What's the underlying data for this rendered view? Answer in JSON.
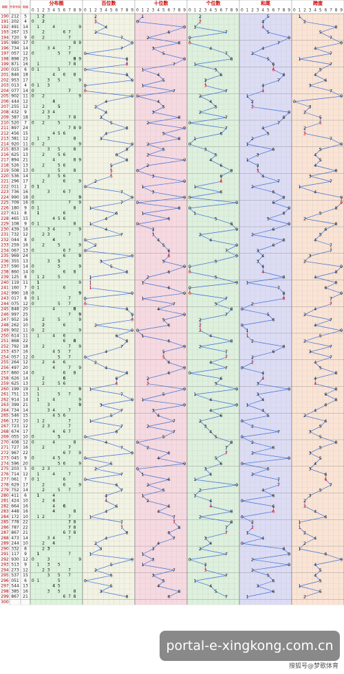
{
  "header": {
    "period": "期数",
    "number": "开奖号码",
    "sum": "和值",
    "zones": [
      "分布图",
      "百位数",
      "十位数",
      "个位数",
      "和尾",
      "跨度"
    ],
    "digits": [
      0,
      1,
      2,
      3,
      4,
      5,
      6,
      7,
      8,
      9
    ]
  },
  "rows": [
    [
      190,
      "212",
      2,
      1,
      2,
      5,
      5,
      1
    ],
    [
      191,
      "202",
      2,
      0,
      2,
      4,
      4,
      2
    ],
    [
      192,
      "491",
      4,
      9,
      1,
      14,
      4,
      8
    ],
    [
      193,
      "267",
      2,
      6,
      7,
      15,
      5,
      5
    ],
    [
      194,
      "720",
      7,
      2,
      0,
      9,
      9,
      7
    ],
    [
      195,
      "980",
      9,
      8,
      0,
      17,
      7,
      9
    ],
    [
      196,
      "734",
      7,
      3,
      4,
      14,
      4,
      4
    ],
    [
      197,
      "057",
      0,
      5,
      7,
      12,
      2,
      7
    ],
    [
      198,
      "898",
      8,
      9,
      8,
      25,
      5,
      1
    ],
    [
      199,
      "871",
      8,
      7,
      1,
      16,
      6,
      7
    ],
    [
      200,
      "015",
      0,
      1,
      5,
      6,
      6,
      5
    ],
    [
      201,
      "846",
      8,
      4,
      6,
      18,
      8,
      4
    ],
    [
      202,
      "953",
      9,
      5,
      3,
      17,
      7,
      6
    ],
    [
      203,
      "013",
      0,
      1,
      3,
      4,
      4,
      3
    ],
    [
      204,
      "077",
      0,
      7,
      7,
      14,
      4,
      7
    ],
    [
      205,
      "902",
      9,
      0,
      2,
      11,
      1,
      9
    ],
    [
      206,
      "444",
      4,
      4,
      4,
      12,
      2,
      0
    ],
    [
      207,
      "255",
      2,
      5,
      5,
      12,
      2,
      3
    ],
    [
      208,
      "432",
      4,
      3,
      2,
      9,
      9,
      2
    ],
    [
      209,
      "387",
      3,
      8,
      7,
      18,
      8,
      5
    ],
    [
      210,
      "520",
      5,
      2,
      0,
      7,
      7,
      5
    ],
    [
      211,
      "897",
      8,
      9,
      7,
      24,
      4,
      2
    ],
    [
      212,
      "456",
      4,
      5,
      6,
      15,
      5,
      2
    ],
    [
      213,
      "381",
      3,
      8,
      1,
      12,
      2,
      7
    ],
    [
      214,
      "920",
      9,
      2,
      0,
      11,
      1,
      9
    ],
    [
      215,
      "853",
      8,
      5,
      3,
      16,
      6,
      5
    ],
    [
      216,
      "625",
      6,
      2,
      5,
      13,
      3,
      4
    ],
    [
      217,
      "894",
      8,
      9,
      4,
      21,
      1,
      5
    ],
    [
      218,
      "526",
      5,
      2,
      6,
      13,
      3,
      4
    ],
    [
      219,
      "508",
      5,
      0,
      8,
      13,
      3,
      8
    ],
    [
      220,
      "536",
      5,
      3,
      6,
      14,
      4,
      3
    ],
    [
      221,
      "296",
      2,
      9,
      6,
      17,
      7,
      7
    ],
    [
      222,
      "011",
      0,
      1,
      1,
      2,
      2,
      1
    ],
    [
      223,
      "736",
      7,
      3,
      6,
      16,
      6,
      4
    ],
    [
      224,
      "990",
      9,
      9,
      0,
      18,
      8,
      9
    ],
    [
      225,
      "709",
      7,
      0,
      9,
      16,
      6,
      9
    ],
    [
      226,
      "180",
      1,
      8,
      0,
      9,
      9,
      8
    ],
    [
      227,
      "611",
      6,
      1,
      1,
      8,
      8,
      5
    ],
    [
      228,
      "465",
      4,
      6,
      5,
      15,
      5,
      2
    ],
    [
      229,
      "108",
      1,
      0,
      8,
      9,
      9,
      8
    ],
    [
      230,
      "439",
      4,
      3,
      9,
      16,
      6,
      6
    ],
    [
      231,
      "732",
      7,
      3,
      2,
      12,
      2,
      5
    ],
    [
      232,
      "044",
      0,
      4,
      4,
      8,
      8,
      4
    ],
    [
      233,
      "259",
      2,
      5,
      9,
      16,
      6,
      7
    ],
    [
      234,
      "067",
      0,
      6,
      7,
      13,
      3,
      7
    ],
    [
      235,
      "969",
      9,
      6,
      9,
      24,
      4,
      3
    ],
    [
      236,
      "355",
      3,
      5,
      5,
      13,
      3,
      2
    ],
    [
      237,
      "590",
      5,
      9,
      0,
      14,
      4,
      9
    ],
    [
      238,
      "860",
      8,
      6,
      0,
      14,
      4,
      8
    ],
    [
      239,
      "125",
      1,
      2,
      5,
      8,
      8,
      4
    ],
    [
      240,
      "119",
      1,
      1,
      9,
      11,
      1,
      8
    ],
    [
      241,
      "160",
      1,
      6,
      0,
      7,
      7,
      6
    ],
    [
      242,
      "990",
      9,
      9,
      0,
      18,
      8,
      9
    ],
    [
      243,
      "017",
      0,
      1,
      7,
      8,
      8,
      7
    ],
    [
      244,
      "075",
      0,
      7,
      5,
      12,
      2,
      7
    ],
    [
      245,
      "848",
      8,
      4,
      8,
      20,
      0,
      4
    ],
    [
      246,
      "997",
      9,
      9,
      7,
      25,
      5,
      2
    ],
    [
      247,
      "952",
      9,
      5,
      2,
      16,
      6,
      7
    ],
    [
      248,
      "262",
      2,
      6,
      2,
      10,
      0,
      4
    ],
    [
      249,
      "902",
      9,
      0,
      2,
      11,
      1,
      9
    ],
    [
      250,
      "614",
      6,
      1,
      4,
      11,
      1,
      5
    ],
    [
      251,
      "868",
      8,
      6,
      8,
      22,
      2,
      2
    ],
    [
      252,
      "792",
      7,
      9,
      2,
      18,
      8,
      7
    ],
    [
      253,
      "457",
      4,
      5,
      7,
      16,
      6,
      3
    ],
    [
      254,
      "057",
      0,
      5,
      7,
      12,
      2,
      7
    ],
    [
      255,
      "264",
      2,
      6,
      4,
      12,
      2,
      4
    ],
    [
      256,
      "497",
      4,
      9,
      7,
      20,
      0,
      5
    ],
    [
      257,
      "860",
      8,
      6,
      0,
      14,
      4,
      8
    ],
    [
      258,
      "626",
      6,
      2,
      6,
      14,
      4,
      4
    ],
    [
      259,
      "625",
      6,
      2,
      5,
      13,
      3,
      4
    ],
    [
      260,
      "199",
      1,
      9,
      9,
      19,
      9,
      8
    ],
    [
      261,
      "751",
      7,
      5,
      1,
      13,
      3,
      6
    ],
    [
      262,
      "914",
      9,
      1,
      4,
      14,
      4,
      8
    ],
    [
      263,
      "399",
      3,
      9,
      9,
      21,
      1,
      6
    ],
    [
      264,
      "734",
      7,
      3,
      4,
      14,
      4,
      4
    ],
    [
      265,
      "546",
      5,
      4,
      6,
      15,
      5,
      2
    ],
    [
      266,
      "172",
      1,
      7,
      2,
      10,
      0,
      6
    ],
    [
      267,
      "723",
      7,
      2,
      3,
      12,
      2,
      5
    ],
    [
      268,
      "674",
      6,
      7,
      4,
      17,
      7,
      3
    ],
    [
      269,
      "055",
      0,
      5,
      5,
      10,
      0,
      5
    ],
    [
      270,
      "408",
      4,
      0,
      8,
      12,
      2,
      8
    ],
    [
      271,
      "727",
      7,
      2,
      7,
      16,
      6,
      5
    ],
    [
      272,
      "967",
      9,
      6,
      7,
      22,
      2,
      3
    ],
    [
      273,
      "045",
      0,
      4,
      5,
      9,
      9,
      5
    ],
    [
      274,
      "596",
      5,
      9,
      6,
      20,
      0,
      4
    ],
    [
      275,
      "203",
      2,
      0,
      3,
      5,
      5,
      3
    ],
    [
      276,
      "714",
      7,
      1,
      4,
      12,
      2,
      6
    ],
    [
      277,
      "061",
      0,
      6,
      1,
      7,
      7,
      6
    ],
    [
      278,
      "629",
      6,
      2,
      9,
      17,
      7,
      7
    ],
    [
      279,
      "752",
      7,
      5,
      2,
      14,
      4,
      5
    ],
    [
      280,
      "411",
      4,
      1,
      1,
      6,
      6,
      3
    ],
    [
      281,
      "424",
      4,
      2,
      4,
      10,
      0,
      2
    ],
    [
      282,
      "664",
      6,
      6,
      4,
      16,
      6,
      2
    ],
    [
      283,
      "448",
      4,
      4,
      8,
      16,
      6,
      4
    ],
    [
      284,
      "172",
      1,
      7,
      2,
      10,
      0,
      6
    ],
    [
      285,
      "778",
      7,
      7,
      8,
      22,
      2,
      1
    ],
    [
      286,
      "787",
      7,
      8,
      7,
      22,
      2,
      1
    ],
    [
      287,
      "867",
      8,
      6,
      7,
      21,
      1,
      2
    ],
    [
      288,
      "473",
      4,
      7,
      3,
      14,
      4,
      4
    ],
    [
      289,
      "244",
      2,
      4,
      4,
      10,
      0,
      2
    ],
    [
      290,
      "332",
      3,
      3,
      2,
      8,
      8,
      1
    ],
    [
      291,
      "117",
      1,
      1,
      7,
      9,
      9,
      6
    ],
    [
      292,
      "930",
      9,
      3,
      0,
      12,
      2,
      9
    ],
    [
      293,
      "513",
      5,
      1,
      3,
      9,
      9,
      4
    ],
    [
      294,
      "273",
      2,
      7,
      3,
      12,
      2,
      5
    ],
    [
      295,
      "537",
      5,
      3,
      7,
      15,
      5,
      4
    ],
    [
      296,
      "051",
      0,
      5,
      1,
      6,
      6,
      5
    ],
    [
      297,
      "544",
      5,
      4,
      4,
      13,
      3,
      1
    ],
    [
      298,
      "385",
      3,
      8,
      5,
      16,
      6,
      5
    ],
    [
      299,
      "867",
      8,
      6,
      7,
      21,
      1,
      2
    ],
    [
      300
    ]
  ],
  "watermark": {
    "site": "portal-e-xingkong.com.cn",
    "credit": "搜狐号@梦歌体育"
  }
}
